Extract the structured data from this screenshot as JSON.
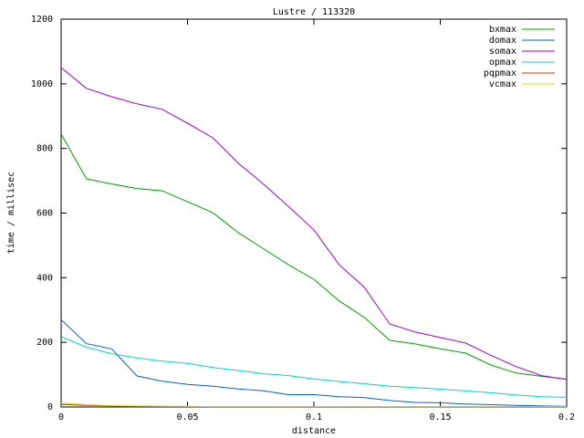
{
  "chart_data": {
    "type": "line",
    "title": "Lustre / 113320",
    "x_label": "distance",
    "y_label": "time / millisec",
    "x": [
      0,
      0.01,
      0.02,
      0.03,
      0.04,
      0.05,
      0.06,
      0.07,
      0.08,
      0.09,
      0.1,
      0.11,
      0.12,
      0.13,
      0.14,
      0.15,
      0.16,
      0.17,
      0.18,
      0.19,
      0.2
    ],
    "series": [
      {
        "name": "bxmax",
        "color": "#00a000",
        "values": [
          845,
          706,
          690,
          676,
          669,
          635,
          601,
          540,
          490,
          440,
          395,
          328,
          277,
          206,
          195,
          180,
          167,
          130,
          105,
          95,
          86
        ]
      },
      {
        "name": "domax",
        "color": "#0060d0",
        "values": [
          270,
          196,
          180,
          96,
          80,
          70,
          64,
          56,
          50,
          38,
          38,
          32,
          29,
          20,
          14,
          13,
          9,
          7,
          5,
          3,
          2
        ]
      },
      {
        "name": "somax",
        "color": "#a000d0",
        "values": [
          1050,
          986,
          960,
          938,
          921,
          878,
          833,
          755,
          690,
          620,
          548,
          440,
          370,
          257,
          232,
          215,
          198,
          160,
          125,
          97,
          85
        ]
      },
      {
        "name": "opmax",
        "color": "#00d0d0",
        "values": [
          218,
          185,
          165,
          152,
          142,
          135,
          122,
          113,
          103,
          97,
          87,
          79,
          72,
          64,
          60,
          55,
          50,
          44,
          37,
          32,
          30
        ]
      },
      {
        "name": "pqpmax",
        "color": "#c04000",
        "values": [
          8,
          5,
          3,
          2,
          2,
          1,
          1,
          1,
          1,
          1,
          1,
          1,
          1,
          1,
          1,
          1,
          1,
          1,
          1,
          1,
          1
        ]
      },
      {
        "name": "vcmax",
        "color": "#e0d000",
        "values": [
          12,
          7,
          4,
          3,
          2,
          2,
          1,
          1,
          1,
          1,
          1,
          1,
          1,
          1,
          1,
          1,
          1,
          1,
          1,
          1,
          1
        ]
      }
    ],
    "xlim": [
      0,
      0.2
    ],
    "xticks": [
      0,
      0.05,
      0.1,
      0.15,
      0.2
    ],
    "ylim": [
      0,
      1200
    ],
    "yticks": [
      0,
      200,
      400,
      600,
      800,
      1000,
      1200
    ],
    "grid": false,
    "legend": "top-right"
  }
}
